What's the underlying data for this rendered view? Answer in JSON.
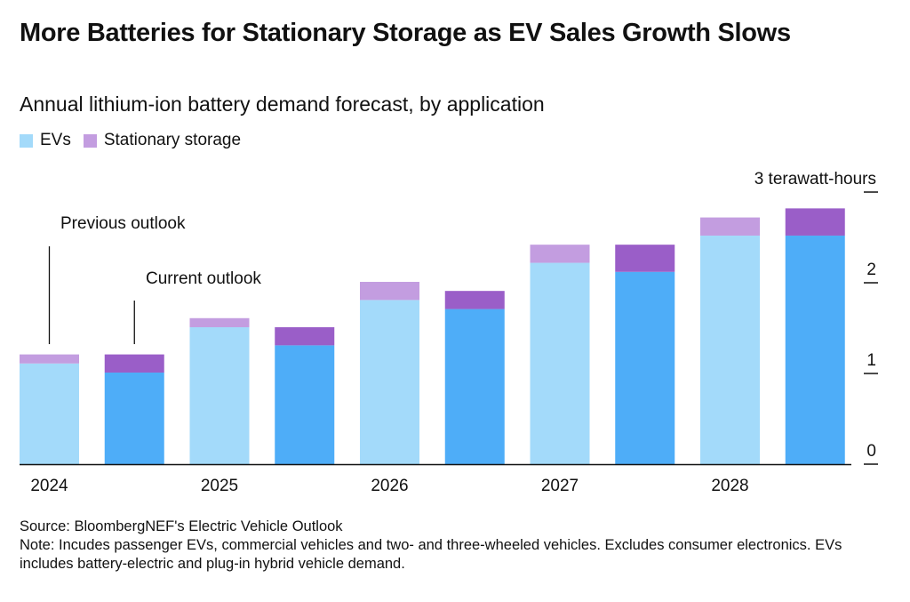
{
  "title": "More Batteries for Stationary Storage as EV Sales Growth Slows",
  "subtitle": "Annual lithium-ion battery demand forecast, by application",
  "legend": [
    {
      "label": "EVs",
      "color": "#a3dafa"
    },
    {
      "label": "Stationary storage",
      "color": "#c39de0"
    }
  ],
  "colors": {
    "ev_previous": "#a3dafa",
    "storage_previous": "#c39de0",
    "ev_current": "#4eadf8",
    "storage_current": "#9a5ec8"
  },
  "source": "Source: BloombergNEF's Electric Vehicle Outlook",
  "note": "Note: Incudes passenger EVs, commercial vehicles and two- and three-wheeled vehicles. Excludes consumer electronics. EVs includes battery-electric and plug-in hybrid vehicle demand.",
  "chart_data": {
    "type": "bar",
    "stacked": true,
    "grouped": true,
    "categories": [
      "2024",
      "2025",
      "2026",
      "2027",
      "2028"
    ],
    "groups": [
      "Previous outlook",
      "Current outlook"
    ],
    "series": [
      {
        "name": "EVs",
        "group": "Previous outlook",
        "values": [
          1.11,
          1.51,
          1.81,
          2.22,
          2.52
        ]
      },
      {
        "name": "Stationary storage",
        "group": "Previous outlook",
        "values": [
          0.1,
          0.1,
          0.2,
          0.2,
          0.2
        ]
      },
      {
        "name": "EVs",
        "group": "Current outlook",
        "values": [
          1.01,
          1.31,
          1.71,
          2.12,
          2.52
        ]
      },
      {
        "name": "Stationary storage",
        "group": "Current outlook",
        "values": [
          0.2,
          0.2,
          0.2,
          0.3,
          0.3
        ]
      }
    ],
    "annotations": [
      "Previous outlook",
      "Current outlook"
    ],
    "y_unit_label": "3 terawatt-hours",
    "y_ticks": [
      "0",
      "1",
      "2",
      "3 terawatt-hours"
    ],
    "ylim": [
      0,
      3
    ],
    "xlabel": "",
    "ylabel": "",
    "grid": false
  }
}
